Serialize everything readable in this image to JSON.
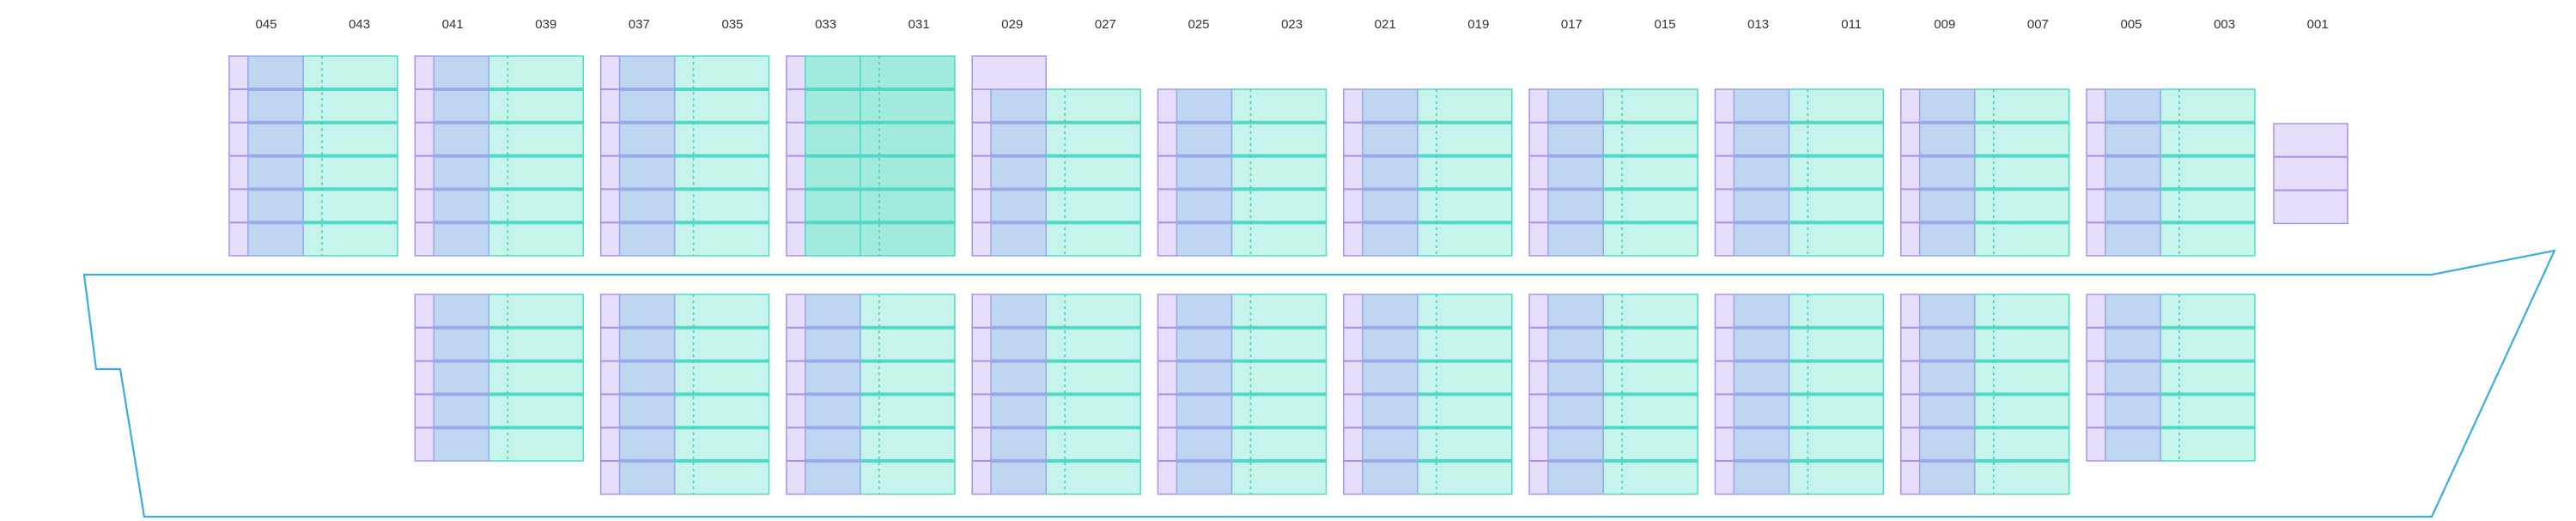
{
  "colors": {
    "hull": "#3aaee0",
    "purple_fill": "#e6defb",
    "purple_stroke": "#a890ee",
    "blue_fill": "#bfd6f0",
    "blue_stroke": "#9aa9ea",
    "teal_fill": "#c6f4ea",
    "teal_stroke": "#4fd9c6",
    "teal_highlight": "#a2eadc",
    "dotted": "#3fc9b8"
  },
  "bays": [
    {
      "label": "045",
      "deck": {
        "tiers": 6
      },
      "hold": {
        "tiers": 0
      }
    },
    {
      "label": "043"
    },
    {
      "label": "041",
      "deck": {
        "tiers": 6
      },
      "hold": {
        "tiers": 5
      }
    },
    {
      "label": "039"
    },
    {
      "label": "037",
      "deck": {
        "tiers": 6
      },
      "hold": {
        "tiers": 6
      }
    },
    {
      "label": "035"
    },
    {
      "label": "033",
      "deck": {
        "tiers": 6,
        "highlight": true
      },
      "hold": {
        "tiers": 6
      }
    },
    {
      "label": "031"
    },
    {
      "label": "029",
      "deck": {
        "tiers": 5,
        "cap": true
      },
      "hold": {
        "tiers": 6
      }
    },
    {
      "label": "027"
    },
    {
      "label": "025",
      "deck": {
        "tiers": 5
      },
      "hold": {
        "tiers": 6
      }
    },
    {
      "label": "023"
    },
    {
      "label": "021",
      "deck": {
        "tiers": 5
      },
      "hold": {
        "tiers": 6
      }
    },
    {
      "label": "019"
    },
    {
      "label": "017",
      "deck": {
        "tiers": 5
      },
      "hold": {
        "tiers": 6
      }
    },
    {
      "label": "015"
    },
    {
      "label": "013",
      "deck": {
        "tiers": 5
      },
      "hold": {
        "tiers": 6
      }
    },
    {
      "label": "011"
    },
    {
      "label": "009",
      "deck": {
        "tiers": 5
      },
      "hold": {
        "tiers": 6
      }
    },
    {
      "label": "007"
    },
    {
      "label": "005",
      "deck": {
        "tiers": 5
      },
      "hold": {
        "tiers": 5
      }
    },
    {
      "label": "003"
    },
    {
      "label": "001",
      "deck": {
        "tiers": 3,
        "bow": true
      },
      "hold": {
        "tiers": 0
      }
    }
  ]
}
